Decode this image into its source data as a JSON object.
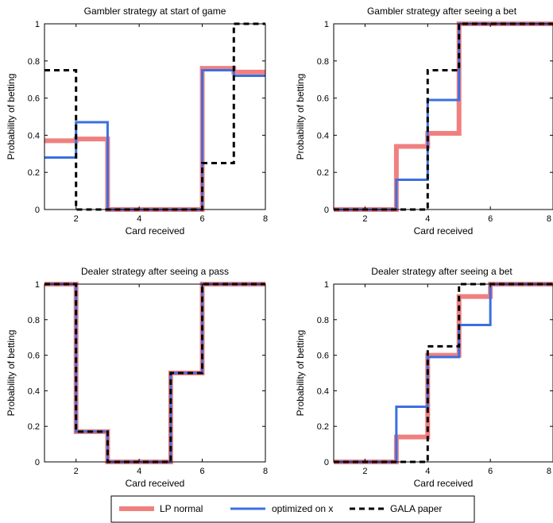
{
  "colors": {
    "lp_normal": "#f08080",
    "optimized": "#3c6fe0",
    "gala": "#000000"
  },
  "legend": {
    "placement": "bottom-center",
    "entries": [
      "LP normal",
      "optimized on x",
      "GALA paper"
    ]
  },
  "chart_data": [
    {
      "type": "line",
      "step": true,
      "title": "Gambler strategy at start of game",
      "xlabel": "Card received",
      "ylabel": "Probability of betting",
      "xlim": [
        1,
        8
      ],
      "ylim": [
        0,
        1
      ],
      "xticks": [
        2,
        4,
        6,
        8
      ],
      "yticks": [
        0,
        0.2,
        0.4,
        0.6,
        0.8,
        1
      ],
      "x": [
        1,
        2,
        3,
        4,
        5,
        6,
        7,
        8
      ],
      "series": [
        {
          "name": "LP normal",
          "values": [
            0.37,
            0.38,
            0.0,
            0.0,
            0.0,
            0.76,
            0.74,
            0.74
          ]
        },
        {
          "name": "optimized on x",
          "values": [
            0.28,
            0.47,
            0.0,
            0.0,
            0.0,
            0.75,
            0.72,
            0.72
          ]
        },
        {
          "name": "GALA paper",
          "values": [
            0.75,
            0.0,
            0.0,
            0.0,
            0.0,
            0.25,
            1.0,
            1.0
          ]
        }
      ]
    },
    {
      "type": "line",
      "step": true,
      "title": "Gambler strategy after seeing a bet",
      "xlabel": "Card received",
      "ylabel": "Probability of betting",
      "xlim": [
        1,
        8
      ],
      "ylim": [
        0,
        1
      ],
      "xticks": [
        2,
        4,
        6,
        8
      ],
      "yticks": [
        0,
        0.2,
        0.4,
        0.6,
        0.8,
        1
      ],
      "x": [
        1,
        2,
        3,
        4,
        5,
        6,
        7,
        8
      ],
      "series": [
        {
          "name": "LP normal",
          "values": [
            0.0,
            0.0,
            0.34,
            0.41,
            1.0,
            1.0,
            1.0,
            1.0
          ]
        },
        {
          "name": "optimized on x",
          "values": [
            0.0,
            0.0,
            0.16,
            0.59,
            1.0,
            1.0,
            1.0,
            1.0
          ]
        },
        {
          "name": "GALA paper",
          "values": [
            0.0,
            0.0,
            0.0,
            0.75,
            1.0,
            1.0,
            1.0,
            1.0
          ]
        }
      ]
    },
    {
      "type": "line",
      "step": true,
      "title": "Dealer strategy after seeing a pass",
      "xlabel": "Card received",
      "ylabel": "Probability of betting",
      "xlim": [
        1,
        8
      ],
      "ylim": [
        0,
        1
      ],
      "xticks": [
        2,
        4,
        6,
        8
      ],
      "yticks": [
        0,
        0.2,
        0.4,
        0.6,
        0.8,
        1
      ],
      "x": [
        1,
        2,
        3,
        4,
        5,
        6,
        7,
        8
      ],
      "series": [
        {
          "name": "LP normal",
          "values": [
            1.0,
            0.17,
            0.0,
            0.0,
            0.5,
            1.0,
            1.0,
            1.0
          ]
        },
        {
          "name": "optimized on x",
          "values": [
            1.0,
            0.17,
            0.0,
            0.0,
            0.5,
            1.0,
            1.0,
            1.0
          ]
        },
        {
          "name": "GALA paper",
          "values": [
            1.0,
            0.17,
            0.0,
            0.0,
            0.5,
            1.0,
            1.0,
            1.0
          ]
        }
      ]
    },
    {
      "type": "line",
      "step": true,
      "title": "Dealer strategy after seeing a bet",
      "xlabel": "Card received",
      "ylabel": "Probability of betting",
      "xlim": [
        1,
        8
      ],
      "ylim": [
        0,
        1
      ],
      "xticks": [
        2,
        4,
        6,
        8
      ],
      "yticks": [
        0,
        0.2,
        0.4,
        0.6,
        0.8,
        1
      ],
      "x": [
        1,
        2,
        3,
        4,
        5,
        6,
        7,
        8
      ],
      "series": [
        {
          "name": "LP normal",
          "values": [
            0.0,
            0.0,
            0.14,
            0.6,
            0.93,
            1.0,
            1.0,
            1.0
          ]
        },
        {
          "name": "optimized on x",
          "values": [
            0.0,
            0.0,
            0.31,
            0.59,
            0.77,
            1.0,
            1.0,
            1.0
          ]
        },
        {
          "name": "GALA paper",
          "values": [
            0.0,
            0.0,
            0.0,
            0.65,
            1.0,
            1.0,
            1.0,
            1.0
          ]
        }
      ]
    }
  ]
}
